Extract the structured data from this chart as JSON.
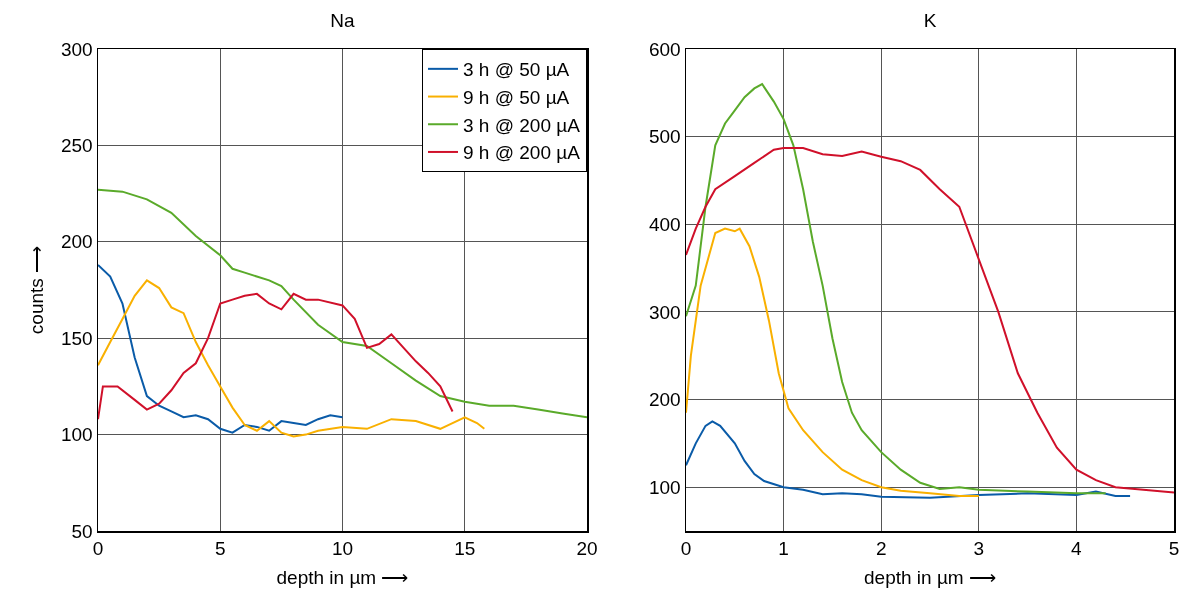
{
  "chart_data": [
    {
      "type": "line",
      "title": "Na",
      "xlabel": "depth in µm ⟶",
      "ylabel": "counts ⟶",
      "xlim": [
        0,
        20
      ],
      "xticks": [
        0,
        5,
        10,
        15,
        20
      ],
      "ylim": [
        50,
        300
      ],
      "yticks": [
        50,
        100,
        150,
        200,
        250,
        300
      ],
      "grid": true,
      "legend": "top right",
      "series": [
        {
          "name": "3 h @ 50 µA",
          "color": "#0a5ba8",
          "x": [
            0,
            0.5,
            1,
            1.5,
            2,
            2.5,
            3,
            3.5,
            4,
            4.5,
            5,
            5.5,
            6,
            6.5,
            7,
            7.5,
            8,
            8.5,
            9,
            9.5,
            10
          ],
          "values": [
            188,
            182,
            168,
            140,
            120,
            115,
            112,
            109,
            110,
            108,
            103,
            101,
            105,
            104,
            102,
            107,
            106,
            105,
            108,
            110,
            109
          ]
        },
        {
          "name": "9 h @ 50 µA",
          "color": "#f9b000",
          "x": [
            0,
            0.5,
            1,
            1.5,
            2,
            2.5,
            3,
            3.5,
            4,
            4.5,
            5,
            5.5,
            6,
            6.5,
            7,
            7.5,
            8,
            8.5,
            9,
            10,
            11,
            12,
            13,
            14,
            14.5,
            15,
            15.5,
            15.8
          ],
          "values": [
            136,
            148,
            160,
            172,
            180,
            176,
            166,
            163,
            148,
            136,
            125,
            114,
            105,
            102,
            107,
            101,
            99,
            100,
            102,
            104,
            103,
            108,
            107,
            103,
            106,
            109,
            106,
            103
          ]
        },
        {
          "name": "3 h @ 200 µA",
          "color": "#5aaa2a",
          "x": [
            0,
            1,
            2,
            3,
            4,
            5,
            5.5,
            6,
            7,
            7.5,
            8,
            9,
            10,
            11,
            12,
            13,
            14,
            15,
            16,
            17,
            18,
            19,
            20
          ],
          "values": [
            227,
            226,
            222,
            215,
            203,
            193,
            186,
            184,
            180,
            177,
            170,
            157,
            148,
            146,
            137,
            128,
            120,
            117,
            115,
            115,
            113,
            111,
            109
          ]
        },
        {
          "name": "9 h @ 200 µA",
          "color": "#d0102a",
          "x": [
            0,
            0.2,
            0.8,
            1.5,
            2,
            2.5,
            3,
            3.5,
            4,
            4.5,
            5,
            5.5,
            6,
            6.5,
            7,
            7.5,
            8,
            8.5,
            9,
            10,
            10.5,
            11,
            11.5,
            12,
            12.5,
            13,
            13.5,
            14,
            14.5
          ],
          "values": [
            108,
            125,
            125,
            118,
            113,
            116,
            123,
            132,
            137,
            150,
            168,
            170,
            172,
            173,
            168,
            165,
            173,
            170,
            170,
            167,
            160,
            145,
            147,
            152,
            145,
            138,
            132,
            125,
            112
          ]
        }
      ]
    },
    {
      "type": "line",
      "title": "K",
      "xlabel": "depth in µm ⟶",
      "xlim": [
        0,
        5
      ],
      "xticks": [
        0,
        1,
        2,
        3,
        4,
        5
      ],
      "ylim": [
        50,
        600
      ],
      "yticks": [
        100,
        200,
        300,
        400,
        500,
        600
      ],
      "grid": true,
      "series": [
        {
          "color": "#0a5ba8",
          "x": [
            0,
            0.1,
            0.2,
            0.27,
            0.35,
            0.5,
            0.6,
            0.7,
            0.8,
            1,
            1.2,
            1.4,
            1.6,
            1.8,
            2,
            2.5,
            3,
            3.5,
            4,
            4.2,
            4.4,
            4.55
          ],
          "values": [
            125,
            150,
            170,
            175,
            170,
            150,
            130,
            115,
            107,
            100,
            97,
            92,
            93,
            92,
            89,
            88,
            91,
            93,
            91,
            95,
            90,
            90
          ]
        },
        {
          "color": "#f9b000",
          "x": [
            0,
            0.05,
            0.15,
            0.3,
            0.4,
            0.5,
            0.55,
            0.65,
            0.75,
            0.85,
            0.95,
            1.05,
            1.2,
            1.4,
            1.6,
            1.8,
            2,
            2.2,
            2.5,
            2.8,
            3
          ],
          "values": [
            185,
            250,
            330,
            390,
            395,
            392,
            395,
            375,
            340,
            290,
            230,
            190,
            165,
            140,
            120,
            108,
            100,
            96,
            93,
            90,
            90
          ]
        },
        {
          "color": "#5aaa2a",
          "x": [
            0,
            0.1,
            0.2,
            0.3,
            0.4,
            0.5,
            0.6,
            0.7,
            0.78,
            0.9,
            1,
            1.1,
            1.2,
            1.3,
            1.4,
            1.5,
            1.6,
            1.7,
            1.8,
            2,
            2.2,
            2.4,
            2.6,
            2.8,
            3,
            3.5,
            4,
            4.3
          ],
          "values": [
            295,
            330,
            420,
            490,
            515,
            530,
            545,
            555,
            560,
            540,
            520,
            490,
            440,
            380,
            330,
            270,
            220,
            185,
            165,
            140,
            120,
            105,
            98,
            100,
            97,
            95,
            93,
            93
          ]
        },
        {
          "color": "#d0102a",
          "x": [
            0,
            0.1,
            0.2,
            0.3,
            0.5,
            0.7,
            0.9,
            1,
            1.2,
            1.4,
            1.6,
            1.8,
            2,
            2.2,
            2.4,
            2.6,
            2.8,
            3,
            3.2,
            3.4,
            3.6,
            3.8,
            4,
            4.2,
            4.4,
            4.6,
            4.8,
            5
          ],
          "values": [
            365,
            395,
            420,
            440,
            455,
            470,
            485,
            487,
            487,
            480,
            478,
            483,
            477,
            472,
            462,
            440,
            420,
            360,
            300,
            230,
            185,
            145,
            120,
            108,
            100,
            98,
            96,
            94
          ]
        }
      ]
    }
  ]
}
